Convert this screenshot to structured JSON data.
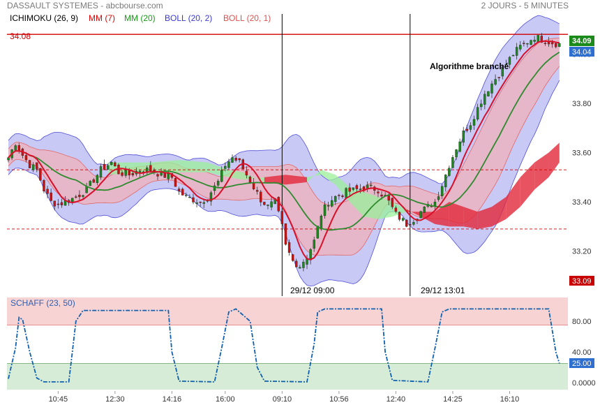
{
  "header": {
    "title": "DASSAULT SYSTEMES - abcbourse.com",
    "period": "2 JOURS - 5 MINUTES"
  },
  "indicators": [
    {
      "label": "ICHIMOKU (26, 9)",
      "color": "#000000"
    },
    {
      "label": "MM (7)",
      "color": "#e00000"
    },
    {
      "label": "MM (20)",
      "color": "#1a9a1a"
    },
    {
      "label": "BOLL (20, 2)",
      "color": "#3a3ad0"
    },
    {
      "label": "BOLL (20, 1)",
      "color": "#e05050"
    }
  ],
  "colors": {
    "candle_up": "#1a8a1a",
    "candle_down": "#d01010",
    "mm7": "#d8102a",
    "mm20": "#2e8a2e",
    "boll2_fill": "#c9c9f5",
    "boll2_line": "#5050d8",
    "boll1_fill": "#e9b4c4",
    "boll1_line": "#e06a6a",
    "cloud_bull": "#9af09a",
    "cloud_bear": "#e2283a",
    "level_line": "#d00000",
    "schaff_line": "#1060b0",
    "zone_high": "#f8d3d3",
    "zone_low": "#d7ecd7",
    "last_price_bg": "#1a8a1a",
    "current_bg": "#2f6fd0",
    "low_bg": "#c80000"
  },
  "annotations": {
    "level_label": "34.08",
    "algo_label": "Algorithme branché",
    "vline1_label": "29/12 09:00",
    "vline2_label": "29/12 13:01"
  },
  "price_badges": {
    "last": "34.09",
    "current": "34.04",
    "low": "33.09"
  },
  "schaff": {
    "label": "SCHAFF (23, 50)",
    "badge": "25.00",
    "yticks": [
      "80.00",
      "40.00",
      "0.0000"
    ],
    "tick_values": [
      80,
      40,
      0
    ],
    "upper_band": 75,
    "lower_band": 25,
    "segments": [
      {
        "t": 0,
        "v": 5
      },
      {
        "t": 2,
        "v": 45
      },
      {
        "t": 3,
        "v": 85
      },
      {
        "t": 4,
        "v": 82
      },
      {
        "t": 6,
        "v": 40
      },
      {
        "t": 8,
        "v": 6
      },
      {
        "t": 10,
        "v": 1
      },
      {
        "t": 17,
        "v": 1
      },
      {
        "t": 18,
        "v": 40
      },
      {
        "t": 19,
        "v": 80
      },
      {
        "t": 21,
        "v": 94
      },
      {
        "t": 45,
        "v": 94
      },
      {
        "t": 46,
        "v": 40
      },
      {
        "t": 48,
        "v": 2
      },
      {
        "t": 58,
        "v": 1
      },
      {
        "t": 60,
        "v": 45
      },
      {
        "t": 62,
        "v": 92
      },
      {
        "t": 64,
        "v": 96
      },
      {
        "t": 68,
        "v": 80
      },
      {
        "t": 70,
        "v": 20
      },
      {
        "t": 72,
        "v": 2
      },
      {
        "t": 84,
        "v": 1
      },
      {
        "t": 86,
        "v": 50
      },
      {
        "t": 87,
        "v": 92
      },
      {
        "t": 89,
        "v": 96
      },
      {
        "t": 105,
        "v": 96
      },
      {
        "t": 106,
        "v": 40
      },
      {
        "t": 108,
        "v": 3
      },
      {
        "t": 118,
        "v": 1
      },
      {
        "t": 120,
        "v": 45
      },
      {
        "t": 122,
        "v": 92
      },
      {
        "t": 124,
        "v": 96
      },
      {
        "t": 152,
        "v": 96
      },
      {
        "t": 154,
        "v": 40
      },
      {
        "t": 155,
        "v": 25
      }
    ]
  },
  "chart_data": {
    "type": "candlestick",
    "title": "DASSAULT SYSTEMES",
    "ylim": [
      33.08,
      34.14
    ],
    "yticks": [
      "34.00",
      "33.80",
      "33.60",
      "33.40",
      "33.20"
    ],
    "ytick_values": [
      34.0,
      33.8,
      33.6,
      33.4,
      33.2
    ],
    "xticks": [
      {
        "t": 14,
        "label": "10:45"
      },
      {
        "t": 30,
        "label": "12:30"
      },
      {
        "t": 46,
        "label": "14:16"
      },
      {
        "t": 61,
        "label": "16:00"
      },
      {
        "t": 77,
        "label": "09:10"
      },
      {
        "t": 93,
        "label": "10:56"
      },
      {
        "t": 109,
        "label": "12:40"
      },
      {
        "t": 125,
        "label": "14:25"
      },
      {
        "t": 141,
        "label": "16:10"
      }
    ],
    "levels": [
      {
        "value": 34.08,
        "style": "solid"
      },
      {
        "value": 33.53,
        "style": "dashed"
      },
      {
        "value": 33.29,
        "style": "dashed"
      }
    ],
    "vlines": [
      77,
      113
    ],
    "t_count": 158,
    "close_path": [
      {
        "t": 0,
        "v": 33.58
      },
      {
        "t": 2,
        "v": 33.64
      },
      {
        "t": 4,
        "v": 33.59
      },
      {
        "t": 6,
        "v": 33.55
      },
      {
        "t": 8,
        "v": 33.53
      },
      {
        "t": 10,
        "v": 33.45
      },
      {
        "t": 12,
        "v": 33.4
      },
      {
        "t": 14,
        "v": 33.39
      },
      {
        "t": 16,
        "v": 33.4
      },
      {
        "t": 19,
        "v": 33.42
      },
      {
        "t": 22,
        "v": 33.45
      },
      {
        "t": 26,
        "v": 33.53
      },
      {
        "t": 29,
        "v": 33.56
      },
      {
        "t": 31,
        "v": 33.52
      },
      {
        "t": 34,
        "v": 33.51
      },
      {
        "t": 37,
        "v": 33.53
      },
      {
        "t": 40,
        "v": 33.53
      },
      {
        "t": 43,
        "v": 33.51
      },
      {
        "t": 46,
        "v": 33.5
      },
      {
        "t": 48,
        "v": 33.44
      },
      {
        "t": 50,
        "v": 33.42
      },
      {
        "t": 52,
        "v": 33.41
      },
      {
        "t": 54,
        "v": 33.4
      },
      {
        "t": 56,
        "v": 33.42
      },
      {
        "t": 59,
        "v": 33.48
      },
      {
        "t": 61,
        "v": 33.55
      },
      {
        "t": 63,
        "v": 33.58
      },
      {
        "t": 65,
        "v": 33.56
      },
      {
        "t": 67,
        "v": 33.51
      },
      {
        "t": 69,
        "v": 33.46
      },
      {
        "t": 71,
        "v": 33.41
      },
      {
        "t": 73,
        "v": 33.38
      },
      {
        "t": 75,
        "v": 33.4
      },
      {
        "t": 77,
        "v": 33.3
      },
      {
        "t": 78,
        "v": 33.22
      },
      {
        "t": 80,
        "v": 33.16
      },
      {
        "t": 82,
        "v": 33.14
      },
      {
        "t": 84,
        "v": 33.18
      },
      {
        "t": 86,
        "v": 33.24
      },
      {
        "t": 88,
        "v": 33.35
      },
      {
        "t": 90,
        "v": 33.4
      },
      {
        "t": 92,
        "v": 33.42
      },
      {
        "t": 95,
        "v": 33.44
      },
      {
        "t": 98,
        "v": 33.45
      },
      {
        "t": 101,
        "v": 33.46
      },
      {
        "t": 104,
        "v": 33.45
      },
      {
        "t": 107,
        "v": 33.4
      },
      {
        "t": 109,
        "v": 33.35
      },
      {
        "t": 112,
        "v": 33.31
      },
      {
        "t": 114,
        "v": 33.33
      },
      {
        "t": 116,
        "v": 33.36
      },
      {
        "t": 118,
        "v": 33.38
      },
      {
        "t": 120,
        "v": 33.4
      },
      {
        "t": 122,
        "v": 33.47
      },
      {
        "t": 124,
        "v": 33.55
      },
      {
        "t": 126,
        "v": 33.62
      },
      {
        "t": 128,
        "v": 33.68
      },
      {
        "t": 130,
        "v": 33.72
      },
      {
        "t": 132,
        "v": 33.78
      },
      {
        "t": 134,
        "v": 33.84
      },
      {
        "t": 136,
        "v": 33.88
      },
      {
        "t": 138,
        "v": 33.92
      },
      {
        "t": 140,
        "v": 33.96
      },
      {
        "t": 142,
        "v": 34.0
      },
      {
        "t": 144,
        "v": 34.03
      },
      {
        "t": 146,
        "v": 34.05
      },
      {
        "t": 148,
        "v": 34.07
      },
      {
        "t": 150,
        "v": 34.06
      },
      {
        "t": 152,
        "v": 34.05
      },
      {
        "t": 155,
        "v": 34.04
      }
    ],
    "cloud": [
      {
        "t": 28,
        "a": 33.51,
        "b": 33.56
      },
      {
        "t": 40,
        "a": 33.52,
        "b": 33.56
      },
      {
        "t": 48,
        "a": 33.52,
        "b": 33.57
      },
      {
        "t": 56,
        "a": 33.52,
        "b": 33.56
      },
      {
        "t": 62,
        "a": 33.5,
        "b": 33.53
      },
      {
        "t": 66,
        "a": 33.49,
        "b": 33.52
      },
      {
        "t": 72,
        "a": 33.5,
        "b": 33.48
      },
      {
        "t": 78,
        "a": 33.51,
        "b": 33.47
      },
      {
        "t": 84,
        "a": 33.5,
        "b": 33.48
      },
      {
        "t": 88,
        "a": 33.51,
        "b": 33.53
      },
      {
        "t": 92,
        "a": 33.47,
        "b": 33.51
      },
      {
        "t": 96,
        "a": 33.4,
        "b": 33.46
      },
      {
        "t": 100,
        "a": 33.34,
        "b": 33.44
      },
      {
        "t": 104,
        "a": 33.33,
        "b": 33.42
      },
      {
        "t": 108,
        "a": 33.34,
        "b": 33.4
      },
      {
        "t": 112,
        "a": 33.36,
        "b": 33.37
      },
      {
        "t": 116,
        "a": 33.36,
        "b": 33.34
      },
      {
        "t": 120,
        "a": 33.36,
        "b": 33.31
      },
      {
        "t": 124,
        "a": 33.4,
        "b": 33.3
      },
      {
        "t": 128,
        "a": 33.38,
        "b": 33.3
      },
      {
        "t": 132,
        "a": 33.36,
        "b": 33.29
      },
      {
        "t": 136,
        "a": 33.38,
        "b": 33.3
      },
      {
        "t": 140,
        "a": 33.42,
        "b": 33.33
      },
      {
        "t": 144,
        "a": 33.5,
        "b": 33.38
      },
      {
        "t": 148,
        "a": 33.56,
        "b": 33.45
      },
      {
        "t": 152,
        "a": 33.6,
        "b": 33.5
      },
      {
        "t": 155,
        "a": 33.64,
        "b": 33.56
      }
    ]
  }
}
